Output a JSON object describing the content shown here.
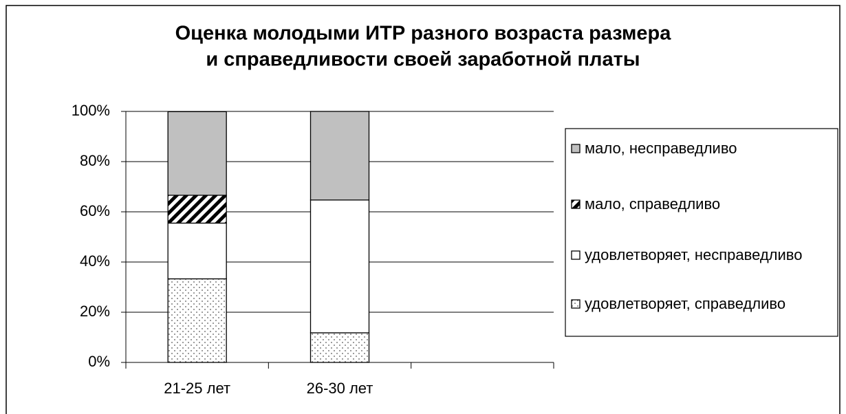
{
  "chart_data": {
    "type": "stacked_bar_100",
    "title": [
      "Оценка молодыми ИТР разного возраста размера",
      "и справедливости своей заработной платы"
    ],
    "categories": [
      "21-25 лет",
      "26-30 лет",
      null
    ],
    "series": [
      {
        "name": "удовлетворяет, справедливо",
        "color": "#ffffff",
        "pattern": "dots",
        "values": [
          33.3,
          11.8,
          null
        ]
      },
      {
        "name": "удовлетворяет, несправедливо",
        "color": "#ffffff",
        "values": [
          22.2,
          52.9,
          null
        ]
      },
      {
        "name": "мало, справедливо",
        "color": "#ffffff",
        "pattern": "hatch",
        "values": [
          11.1,
          0,
          null
        ]
      },
      {
        "name": "мало, несправедливо",
        "color": "#c0c0c0",
        "values": [
          33.3,
          35.3,
          null
        ]
      }
    ],
    "ylim": [
      0,
      100
    ],
    "yticks": [
      {
        "value": 0,
        "label": "0%"
      },
      {
        "value": 20,
        "label": "20%"
      },
      {
        "value": 40,
        "label": "40%"
      },
      {
        "value": 60,
        "label": "60%"
      },
      {
        "value": 80,
        "label": "80%"
      },
      {
        "value": 100,
        "label": "100%"
      }
    ],
    "grid": true,
    "legend": "right"
  }
}
